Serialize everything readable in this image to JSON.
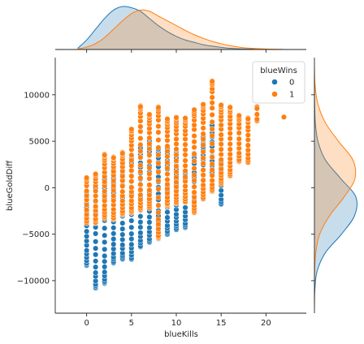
{
  "chart_data": {
    "type": "scatter",
    "subtype": "jointplot-with-kde-marginals",
    "xlabel": "blueKills",
    "ylabel": "blueGoldDiff",
    "xlim": [
      -3.5,
      24.5
    ],
    "ylim": [
      -13500,
      14000
    ],
    "xticks": [
      0,
      5,
      10,
      15,
      20
    ],
    "yticks": [
      -10000,
      -5000,
      0,
      5000,
      10000
    ],
    "xtick_labels": [
      "0",
      "5",
      "10",
      "15",
      "20"
    ],
    "ytick_labels": [
      "−10000",
      "−5000",
      "0",
      "5000",
      "10000"
    ],
    "grid": false,
    "legend": {
      "title": "blueWins",
      "placement": "top-right",
      "entries": [
        {
          "label": "0",
          "color": "#1f77b4"
        },
        {
          "label": "1",
          "color": "#ff7f0e"
        }
      ]
    },
    "hue": "blueWins",
    "series": [
      {
        "name": "0",
        "color": "#1f77b4",
        "columns": [
          {
            "x": 0,
            "ymin": -8400,
            "ymax": -400
          },
          {
            "x": 1,
            "ymin": -10800,
            "ymax": 800
          },
          {
            "x": 2,
            "ymin": -10300,
            "ymax": 1700
          },
          {
            "x": 3,
            "ymin": -8100,
            "ymax": 2000
          },
          {
            "x": 4,
            "ymin": -7700,
            "ymax": 2900
          },
          {
            "x": 5,
            "ymin": -7700,
            "ymax": 3500
          },
          {
            "x": 6,
            "ymin": -6400,
            "ymax": 4300
          },
          {
            "x": 7,
            "ymin": -5900,
            "ymax": 5000
          },
          {
            "x": 8,
            "ymin": -5500,
            "ymax": 4200
          },
          {
            "x": 9,
            "ymin": -5000,
            "ymax": 4300
          },
          {
            "x": 10,
            "ymin": -4500,
            "ymax": 4100
          },
          {
            "x": 11,
            "ymin": -4300,
            "ymax": 1800
          },
          {
            "x": 12,
            "ymin": -2500,
            "ymax": 3700
          },
          {
            "x": 13,
            "ymin": -1200,
            "ymax": 5500
          },
          {
            "x": 14,
            "ymin": 1500,
            "ymax": 6800
          },
          {
            "x": 15,
            "ymin": -1800,
            "ymax": 2800
          }
        ]
      },
      {
        "name": "1",
        "color": "#ff7f0e",
        "columns": [
          {
            "x": 0,
            "ymin": -3800,
            "ymax": 1100
          },
          {
            "x": 1,
            "ymin": -3800,
            "ymax": 1500
          },
          {
            "x": 2,
            "ymin": -3300,
            "ymax": 3600
          },
          {
            "x": 3,
            "ymin": -3400,
            "ymax": 3300
          },
          {
            "x": 4,
            "ymin": -2900,
            "ymax": 3800
          },
          {
            "x": 5,
            "ymin": -2700,
            "ymax": 6300
          },
          {
            "x": 6,
            "ymin": -2400,
            "ymax": 8800
          },
          {
            "x": 7,
            "ymin": -2200,
            "ymax": 7900
          },
          {
            "x": 8,
            "ymin": -5400,
            "ymax": 8700
          },
          {
            "x": 9,
            "ymin": -2000,
            "ymax": 7400
          },
          {
            "x": 10,
            "ymin": -1700,
            "ymax": 7600
          },
          {
            "x": 11,
            "ymin": -1600,
            "ymax": 7500
          },
          {
            "x": 12,
            "ymin": -2700,
            "ymax": 8400
          },
          {
            "x": 13,
            "ymin": -1200,
            "ymax": 9000
          },
          {
            "x": 14,
            "ymin": -400,
            "ymax": 11500
          },
          {
            "x": 15,
            "ymin": 400,
            "ymax": 8900
          },
          {
            "x": 16,
            "ymin": 1300,
            "ymax": 8700
          },
          {
            "x": 17,
            "ymin": 2800,
            "ymax": 7800
          },
          {
            "x": 18,
            "ymin": 2700,
            "ymax": 7500
          },
          {
            "x": 19,
            "ymin": 7200,
            "ymax": 8700
          },
          {
            "x": 22,
            "ymin": 7600,
            "ymax": 7600
          }
        ]
      }
    ],
    "marginal_x_kde": {
      "x": [
        -1,
        0,
        1,
        2,
        3,
        4,
        5,
        6,
        7,
        8,
        9,
        10,
        11,
        12,
        13,
        14,
        15,
        16,
        17,
        18,
        20,
        22
      ],
      "series": [
        {
          "name": "0",
          "density": [
            0.005,
            0.04,
            0.085,
            0.13,
            0.165,
            0.18,
            0.175,
            0.16,
            0.13,
            0.1,
            0.075,
            0.055,
            0.04,
            0.03,
            0.02,
            0.014,
            0.009,
            0.005,
            0.003,
            0.002,
            0.0005,
            0.0
          ]
        },
        {
          "name": "1",
          "density": [
            0.002,
            0.01,
            0.025,
            0.05,
            0.085,
            0.12,
            0.15,
            0.165,
            0.16,
            0.14,
            0.12,
            0.1,
            0.08,
            0.062,
            0.047,
            0.034,
            0.024,
            0.016,
            0.01,
            0.006,
            0.002,
            0.0005
          ]
        }
      ]
    },
    "marginal_y_kde": {
      "y": [
        -13000,
        -11000,
        -9000,
        -7000,
        -5000,
        -3000,
        -1000,
        1000,
        3000,
        5000,
        7000,
        9000,
        11000,
        13000
      ],
      "series": [
        {
          "name": "0",
          "density": [
            0.0,
            0.01,
            0.06,
            0.25,
            0.62,
            0.92,
            0.95,
            0.6,
            0.25,
            0.08,
            0.02,
            0.005,
            0.0,
            0.0
          ]
        },
        {
          "name": "1",
          "density": [
            0.0,
            0.0,
            0.005,
            0.03,
            0.12,
            0.35,
            0.68,
            0.93,
            0.88,
            0.55,
            0.25,
            0.08,
            0.015,
            0.0
          ]
        }
      ]
    }
  }
}
